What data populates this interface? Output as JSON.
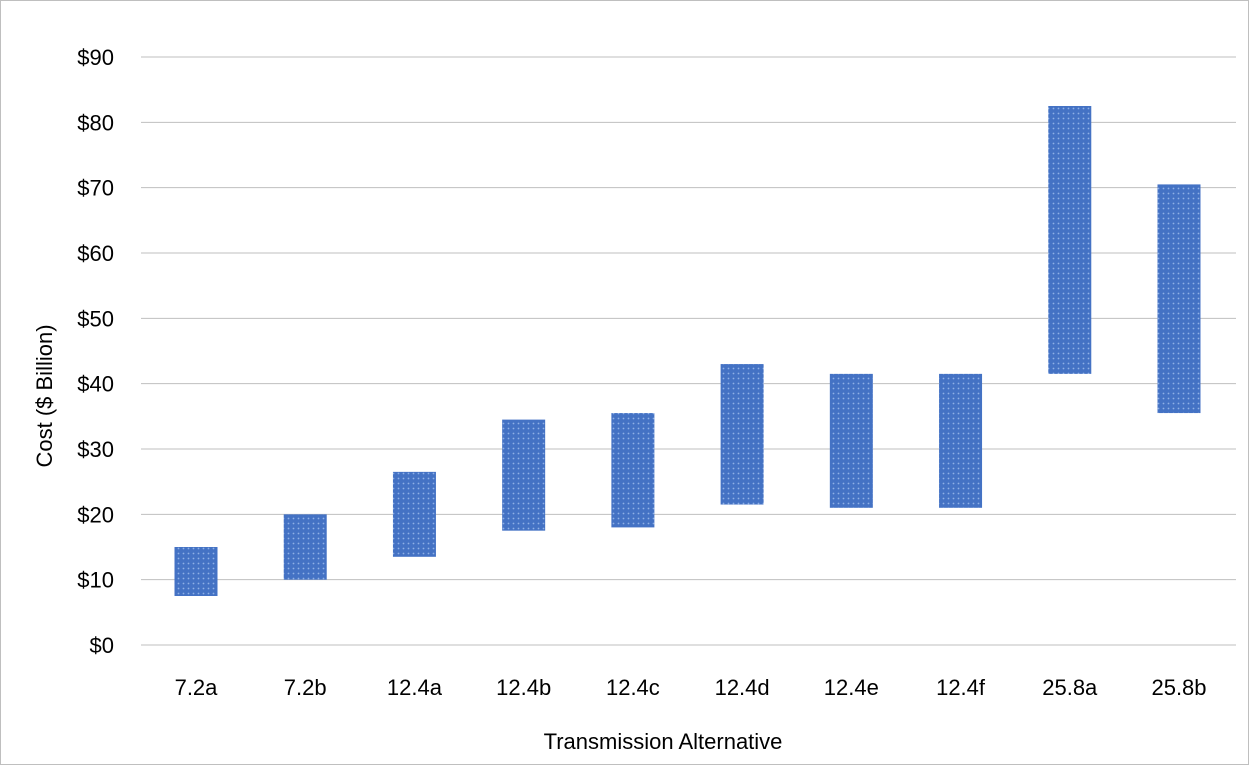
{
  "chart_data": {
    "type": "bar",
    "subtype": "floating-range",
    "title": "",
    "xlabel": "Transmission Alternative",
    "ylabel": "Cost ($ Billion)",
    "ylim": [
      0,
      90
    ],
    "ytick_step": 10,
    "ytick_labels": [
      "$0",
      "$10",
      "$20",
      "$30",
      "$40",
      "$50",
      "$60",
      "$70",
      "$80",
      "$90"
    ],
    "grid": true,
    "legend": "none",
    "categories": [
      "7.2a",
      "7.2b",
      "12.4a",
      "12.4b",
      "12.4c",
      "12.4d",
      "12.4e",
      "12.4f",
      "25.8a",
      "25.8b"
    ],
    "low": [
      7.5,
      10,
      13.5,
      17.5,
      18,
      21.5,
      21,
      21,
      41.5,
      35.5
    ],
    "high": [
      15,
      20,
      26.5,
      34.5,
      35.5,
      43,
      41.5,
      41.5,
      82.5,
      70.5
    ],
    "colors": {
      "bar": "#4472c4",
      "bar_pattern": "#8fb0e6",
      "grid": "#bfbfbf",
      "text": "#000000"
    }
  }
}
